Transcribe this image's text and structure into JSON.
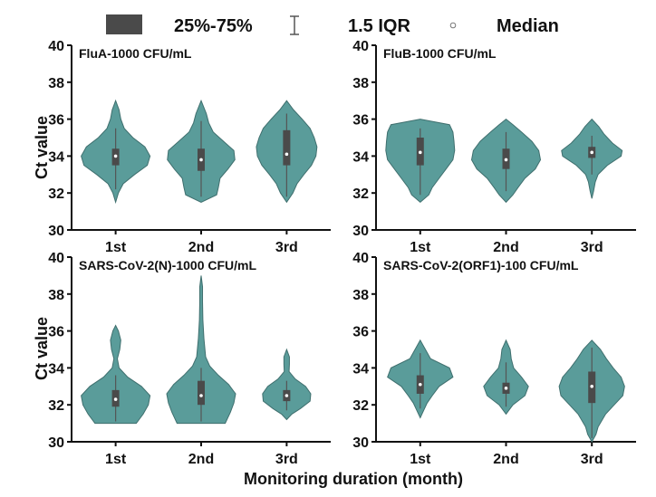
{
  "chart_data": {
    "type": "violin",
    "legend": {
      "placement": "top",
      "items": [
        {
          "key": "box",
          "label": "25%-75%",
          "icon": "box-swatch-icon"
        },
        {
          "key": "whisker",
          "label": "1.5 IQR",
          "icon": "whisker-icon"
        },
        {
          "key": "median",
          "label": "Median",
          "icon": "median-dot-icon"
        }
      ]
    },
    "y_label": "Ct value",
    "x_label": "Monitoring duration (month)",
    "colors": {
      "violin_fill": "#5a9c9a",
      "violin_edge": "#3f6f6e",
      "box_fill": "#4a4a4a",
      "whisker": "#555555",
      "median_dot": "#ffffff",
      "axis": "#111111",
      "text": "#111111"
    },
    "panels": [
      {
        "title": "FluA-1000 CFU/mL",
        "ylim": [
          30,
          40
        ],
        "y_ticks": [
          "30",
          "32",
          "34",
          "36",
          "38",
          "40"
        ],
        "categories": [
          "1st",
          "2nd",
          "3rd"
        ],
        "violins": [
          {
            "category": "1st",
            "range": [
              31.5,
              37.0
            ],
            "profile": [
              [
                31.5,
                0.0
              ],
              [
                32.0,
                0.08
              ],
              [
                32.5,
                0.22
              ],
              [
                33.0,
                0.55
              ],
              [
                33.5,
                0.92
              ],
              [
                34.0,
                1.0
              ],
              [
                34.5,
                0.85
              ],
              [
                35.0,
                0.5
              ],
              [
                35.5,
                0.25
              ],
              [
                36.0,
                0.15
              ],
              [
                36.5,
                0.1
              ],
              [
                37.0,
                0.0
              ]
            ],
            "q1": 33.5,
            "median": 34.0,
            "q3": 34.4,
            "whisker": [
              32.2,
              35.5
            ]
          },
          {
            "category": "2nd",
            "range": [
              31.5,
              37.0
            ],
            "profile": [
              [
                31.5,
                0.0
              ],
              [
                31.9,
                0.45
              ],
              [
                32.3,
                0.5
              ],
              [
                32.8,
                0.55
              ],
              [
                33.3,
                0.78
              ],
              [
                33.8,
                0.98
              ],
              [
                34.3,
                0.95
              ],
              [
                34.8,
                0.65
              ],
              [
                35.3,
                0.35
              ],
              [
                35.8,
                0.22
              ],
              [
                36.3,
                0.15
              ],
              [
                37.0,
                0.0
              ]
            ],
            "q1": 33.2,
            "median": 33.8,
            "q3": 34.4,
            "whisker": [
              31.8,
              35.9
            ]
          },
          {
            "category": "3rd",
            "range": [
              31.5,
              37.0
            ],
            "profile": [
              [
                31.5,
                0.0
              ],
              [
                32.0,
                0.18
              ],
              [
                32.5,
                0.3
              ],
              [
                33.0,
                0.5
              ],
              [
                33.5,
                0.72
              ],
              [
                34.0,
                0.85
              ],
              [
                34.5,
                0.88
              ],
              [
                35.0,
                0.8
              ],
              [
                35.5,
                0.68
              ],
              [
                36.0,
                0.45
              ],
              [
                36.5,
                0.2
              ],
              [
                37.0,
                0.0
              ]
            ],
            "q1": 33.5,
            "median": 34.1,
            "q3": 35.4,
            "whisker": [
              31.8,
              36.3
            ]
          }
        ]
      },
      {
        "title": "FluB-1000 CFU/mL",
        "ylim": [
          30,
          40
        ],
        "y_ticks": [
          "30",
          "32",
          "34",
          "36",
          "38",
          "40"
        ],
        "categories": [
          "1st",
          "2nd",
          "3rd"
        ],
        "violins": [
          {
            "category": "1st",
            "range": [
              31.5,
              36.0
            ],
            "profile": [
              [
                31.5,
                0.0
              ],
              [
                31.9,
                0.25
              ],
              [
                32.3,
                0.35
              ],
              [
                32.8,
                0.55
              ],
              [
                33.3,
                0.75
              ],
              [
                33.8,
                0.95
              ],
              [
                34.3,
                1.0
              ],
              [
                34.8,
                0.98
              ],
              [
                35.3,
                0.95
              ],
              [
                35.7,
                0.85
              ],
              [
                36.0,
                0.0
              ]
            ],
            "q1": 33.5,
            "median": 34.2,
            "q3": 35.0,
            "whisker": [
              31.9,
              35.5
            ]
          },
          {
            "category": "2nd",
            "range": [
              31.5,
              36.0
            ],
            "profile": [
              [
                31.5,
                0.0
              ],
              [
                31.9,
                0.2
              ],
              [
                32.3,
                0.35
              ],
              [
                32.8,
                0.55
              ],
              [
                33.3,
                0.85
              ],
              [
                33.8,
                1.0
              ],
              [
                34.3,
                0.95
              ],
              [
                34.8,
                0.75
              ],
              [
                35.3,
                0.45
              ],
              [
                35.7,
                0.2
              ],
              [
                36.0,
                0.0
              ]
            ],
            "q1": 33.3,
            "median": 33.8,
            "q3": 34.4,
            "whisker": [
              32.1,
              35.3
            ]
          },
          {
            "category": "3rd",
            "range": [
              31.7,
              36.0
            ],
            "profile": [
              [
                31.7,
                0.0
              ],
              [
                32.1,
                0.05
              ],
              [
                32.6,
                0.1
              ],
              [
                33.0,
                0.18
              ],
              [
                33.5,
                0.45
              ],
              [
                34.0,
                0.85
              ],
              [
                34.3,
                0.88
              ],
              [
                34.7,
                0.6
              ],
              [
                35.2,
                0.35
              ],
              [
                35.6,
                0.2
              ],
              [
                36.0,
                0.0
              ]
            ],
            "q1": 33.9,
            "median": 34.2,
            "q3": 34.5,
            "whisker": [
              33.0,
              35.1
            ]
          }
        ]
      },
      {
        "title": "SARS-CoV-2(N)-1000 CFU/mL",
        "ylim": [
          30,
          40
        ],
        "y_ticks": [
          "30",
          "32",
          "34",
          "36",
          "38",
          "40"
        ],
        "categories": [
          "1st",
          "2nd",
          "3rd"
        ],
        "violins": [
          {
            "category": "1st",
            "range": [
              31.0,
              36.3
            ],
            "profile": [
              [
                31.0,
                0.6
              ],
              [
                31.5,
                0.8
              ],
              [
                32.0,
                0.95
              ],
              [
                32.5,
                1.0
              ],
              [
                33.0,
                0.75
              ],
              [
                33.5,
                0.35
              ],
              [
                34.0,
                0.1
              ],
              [
                34.5,
                0.05
              ],
              [
                35.0,
                0.12
              ],
              [
                35.5,
                0.15
              ],
              [
                36.0,
                0.08
              ],
              [
                36.3,
                0.0
              ]
            ],
            "q1": 31.9,
            "median": 32.3,
            "q3": 32.8,
            "whisker": [
              31.1,
              33.6
            ]
          },
          {
            "category": "2nd",
            "range": [
              31.0,
              39.0
            ],
            "profile": [
              [
                31.0,
                0.7
              ],
              [
                31.6,
                0.85
              ],
              [
                32.1,
                0.95
              ],
              [
                32.6,
                1.0
              ],
              [
                33.1,
                0.8
              ],
              [
                33.6,
                0.5
              ],
              [
                34.1,
                0.25
              ],
              [
                34.6,
                0.13
              ],
              [
                35.6,
                0.08
              ],
              [
                36.6,
                0.05
              ],
              [
                37.6,
                0.04
              ],
              [
                38.4,
                0.04
              ],
              [
                39.0,
                0.0
              ]
            ],
            "q1": 32.0,
            "median": 32.5,
            "q3": 33.3,
            "whisker": [
              31.1,
              34.0
            ]
          },
          {
            "category": "3rd",
            "range": [
              31.2,
              35.0
            ],
            "profile": [
              [
                31.2,
                0.0
              ],
              [
                31.5,
                0.15
              ],
              [
                31.8,
                0.4
              ],
              [
                32.2,
                0.68
              ],
              [
                32.6,
                0.7
              ],
              [
                33.0,
                0.55
              ],
              [
                33.4,
                0.25
              ],
              [
                33.8,
                0.07
              ],
              [
                34.2,
                0.08
              ],
              [
                34.6,
                0.08
              ],
              [
                35.0,
                0.0
              ]
            ],
            "q1": 32.2,
            "median": 32.5,
            "q3": 32.8,
            "whisker": [
              31.7,
              33.3
            ]
          }
        ]
      },
      {
        "title": "SARS-CoV-2(ORF1)-100 CFU/mL",
        "ylim": [
          30,
          40
        ],
        "y_ticks": [
          "30",
          "32",
          "34",
          "36",
          "38",
          "40"
        ],
        "categories": [
          "1st",
          "2nd",
          "3rd"
        ],
        "violins": [
          {
            "category": "1st",
            "range": [
              31.3,
              35.5
            ],
            "profile": [
              [
                31.3,
                0.0
              ],
              [
                31.7,
                0.1
              ],
              [
                32.1,
                0.2
              ],
              [
                32.5,
                0.35
              ],
              [
                33.0,
                0.55
              ],
              [
                33.5,
                0.95
              ],
              [
                34.0,
                0.85
              ],
              [
                34.5,
                0.3
              ],
              [
                35.0,
                0.15
              ],
              [
                35.5,
                0.0
              ]
            ],
            "q1": 32.6,
            "median": 33.1,
            "q3": 33.6,
            "whisker": [
              31.8,
              34.8
            ]
          },
          {
            "category": "2nd",
            "range": [
              31.5,
              35.5
            ],
            "profile": [
              [
                31.5,
                0.0
              ],
              [
                32.0,
                0.2
              ],
              [
                32.5,
                0.55
              ],
              [
                33.0,
                0.65
              ],
              [
                33.5,
                0.45
              ],
              [
                34.0,
                0.22
              ],
              [
                34.5,
                0.15
              ],
              [
                35.0,
                0.12
              ],
              [
                35.5,
                0.0
              ]
            ],
            "q1": 32.6,
            "median": 32.9,
            "q3": 33.2,
            "whisker": [
              31.9,
              34.3
            ]
          },
          {
            "category": "3rd",
            "range": [
              30.0,
              35.5
            ],
            "profile": [
              [
                30.0,
                0.0
              ],
              [
                30.4,
                0.12
              ],
              [
                30.8,
                0.18
              ],
              [
                31.5,
                0.4
              ],
              [
                32.0,
                0.65
              ],
              [
                32.5,
                0.9
              ],
              [
                33.0,
                0.95
              ],
              [
                33.5,
                0.85
              ],
              [
                34.0,
                0.62
              ],
              [
                34.5,
                0.42
              ],
              [
                35.0,
                0.25
              ],
              [
                35.5,
                0.0
              ]
            ],
            "q1": 32.1,
            "median": 33.0,
            "q3": 33.8,
            "whisker": [
              30.2,
              35.1
            ]
          }
        ]
      }
    ]
  }
}
